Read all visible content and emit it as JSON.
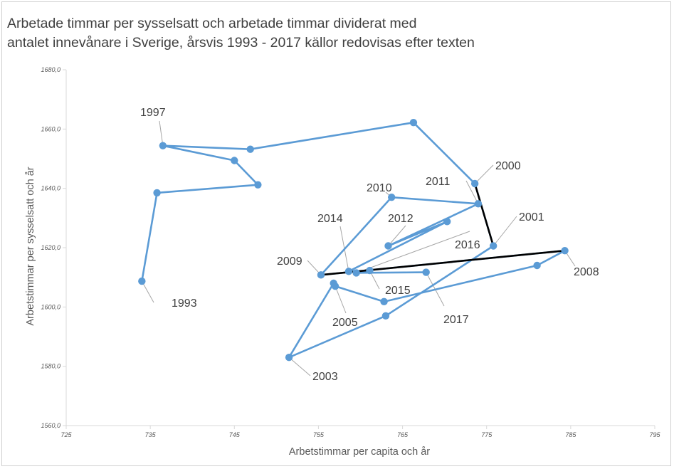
{
  "chart_data": {
    "type": "scatter",
    "title_lines": [
      "Arbetade timmar per sysselsatt och arbetade timmar dividerat med",
      "antalet innevånare i Sverige, årsvis 1993 - 2017 källor redovisas efter texten"
    ],
    "xlabel": "Arbetstimmar per capita och år",
    "ylabel": "Arbetstimmar per sysselsatt och år",
    "xlim": [
      725,
      795
    ],
    "ylim": [
      1560,
      1680
    ],
    "x_ticks": [
      "725",
      "735",
      "745",
      "755",
      "765",
      "775",
      "785",
      "795"
    ],
    "y_ticks": [
      "1560,0",
      "1580,0",
      "1600,0",
      "1620,0",
      "1640,0",
      "1660,0",
      "1680,0"
    ],
    "grid": false,
    "colors": {
      "series": "#5b9bd5",
      "highlight": "#000000",
      "axis": "#d9d9d9"
    },
    "series": [
      {
        "points": [
          {
            "year": "1993",
            "x": 734.0,
            "y": 1608.7
          },
          {
            "year": "1994",
            "x": 735.8,
            "y": 1638.5
          },
          {
            "year": "1995",
            "x": 747.8,
            "y": 1641.2
          },
          {
            "year": "1996",
            "x": 745.0,
            "y": 1649.4
          },
          {
            "year": "1997",
            "x": 736.5,
            "y": 1654.4
          },
          {
            "year": "1998",
            "x": 746.9,
            "y": 1653.2
          },
          {
            "year": "1999",
            "x": 766.3,
            "y": 1662.2
          },
          {
            "year": "2000",
            "x": 773.6,
            "y": 1641.6
          },
          {
            "year": "2001",
            "x": 775.8,
            "y": 1620.6
          },
          {
            "year": "2002",
            "x": 763.0,
            "y": 1597.0
          },
          {
            "year": "2003",
            "x": 751.5,
            "y": 1583.0
          },
          {
            "year": "2004",
            "x": 756.8,
            "y": 1608.0
          },
          {
            "year": "2005",
            "x": 757.0,
            "y": 1607.0
          },
          {
            "year": "2006",
            "x": 762.8,
            "y": 1601.8
          },
          {
            "year": "2007",
            "x": 781.0,
            "y": 1614.0
          },
          {
            "year": "2008",
            "x": 784.3,
            "y": 1619.0
          },
          {
            "year": "2009",
            "x": 755.3,
            "y": 1610.8
          },
          {
            "year": "2010",
            "x": 763.7,
            "y": 1637.0
          },
          {
            "year": "2011",
            "x": 774.0,
            "y": 1634.8
          },
          {
            "year": "2012",
            "x": 763.3,
            "y": 1620.6
          },
          {
            "year": "2013",
            "x": 770.3,
            "y": 1628.8
          },
          {
            "year": "2014",
            "x": 758.6,
            "y": 1612.0
          },
          {
            "year": "2015",
            "x": 761.1,
            "y": 1612.3
          },
          {
            "year": "2016",
            "x": 759.5,
            "y": 1611.5
          },
          {
            "year": "2017",
            "x": 767.8,
            "y": 1611.7
          }
        ]
      }
    ],
    "highlight_segments": [
      {
        "from": "2000",
        "to": "2001"
      },
      {
        "from": "2009",
        "to": "2008"
      }
    ],
    "labels": [
      {
        "year": "1993",
        "text": "1993"
      },
      {
        "year": "1997",
        "text": "1997"
      },
      {
        "year": "2000",
        "text": "2000"
      },
      {
        "year": "2001",
        "text": "2001"
      },
      {
        "year": "2003",
        "text": "2003"
      },
      {
        "year": "2005",
        "text": "2005"
      },
      {
        "year": "2008",
        "text": "2008"
      },
      {
        "year": "2009",
        "text": "2009"
      },
      {
        "year": "2010",
        "text": "2010"
      },
      {
        "year": "2011",
        "text": "2011"
      },
      {
        "year": "2012",
        "text": "2012"
      },
      {
        "year": "2014",
        "text": "2014"
      },
      {
        "year": "2015",
        "text": "2015"
      },
      {
        "year": "2016",
        "text": "2016"
      },
      {
        "year": "2017",
        "text": "2017"
      }
    ]
  }
}
